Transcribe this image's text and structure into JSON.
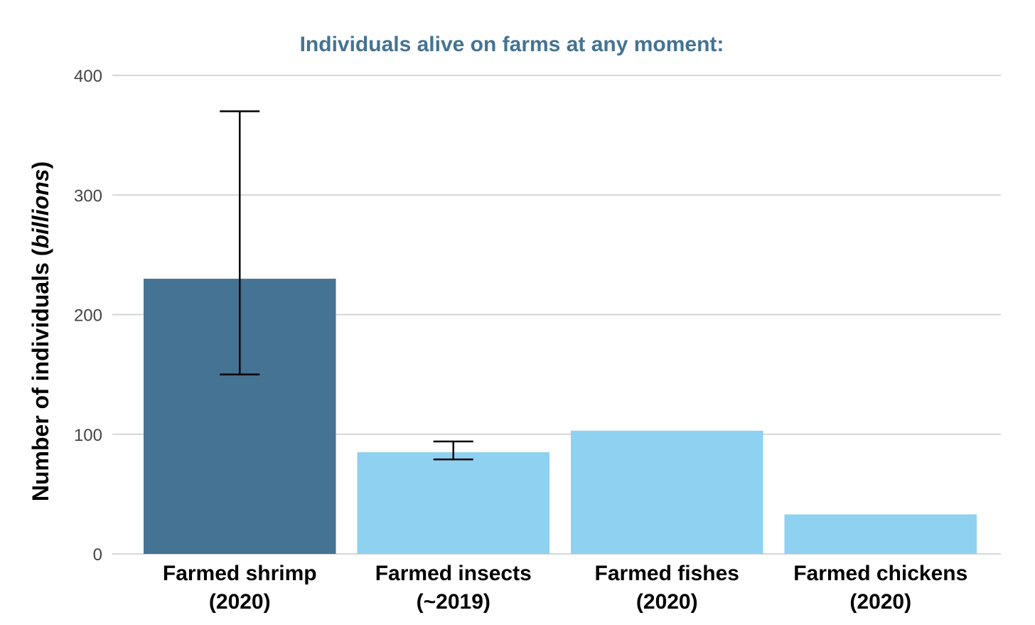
{
  "chart_data": {
    "type": "bar",
    "title": "Individuals alive on farms at any moment:",
    "ylabel_main": "Number of individuals (",
    "ylabel_italic": "billions",
    "ylabel_close": ")",
    "xlabel": "",
    "ylim": [
      0,
      400
    ],
    "yticks": [
      0,
      100,
      200,
      300,
      400
    ],
    "grid": true,
    "categories": [
      {
        "line1": "Farmed shrimp",
        "line2": "(2020)"
      },
      {
        "line1": "Farmed insects",
        "line2": "(~2019)"
      },
      {
        "line1": "Farmed fishes",
        "line2": "(2020)"
      },
      {
        "line1": "Farmed chickens",
        "line2": "(2020)"
      }
    ],
    "values": [
      230,
      85,
      103,
      33
    ],
    "error_bars": [
      {
        "low": 150,
        "high": 370
      },
      {
        "low": 79,
        "high": 94
      },
      null,
      null
    ],
    "colors": [
      "#447393",
      "#8fd1f0",
      "#8fd1f0",
      "#8fd1f0"
    ]
  }
}
